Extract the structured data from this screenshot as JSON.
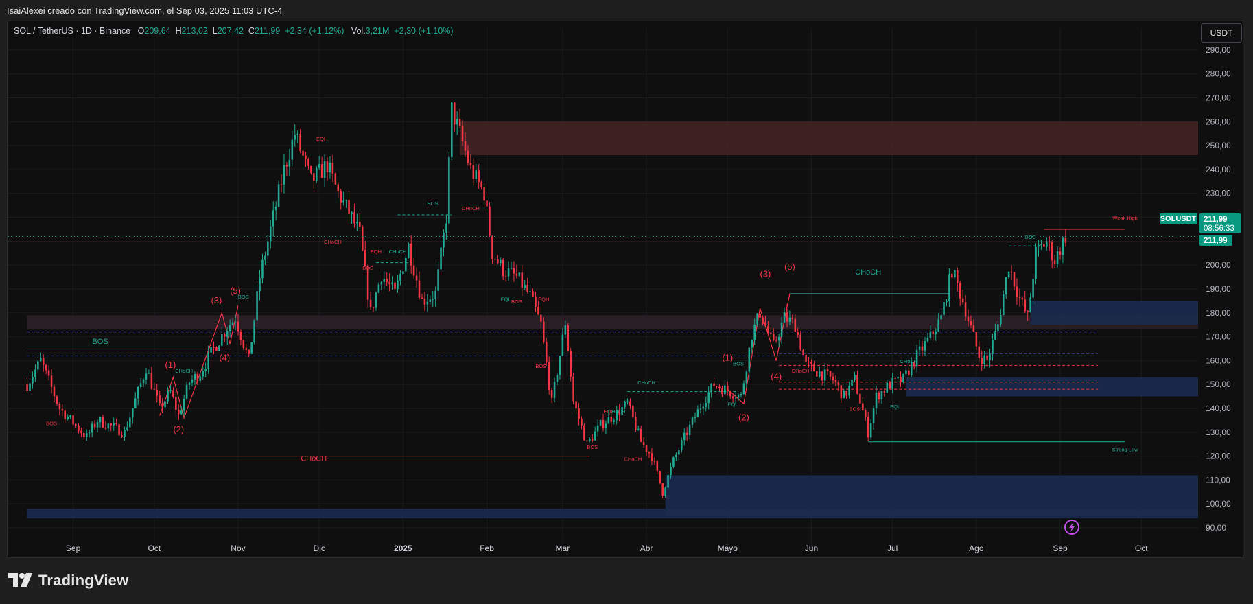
{
  "header": {
    "attribution": "IsaiAlexei creado con TradingView.com, el Sep 03, 2025 11:03 UTC-4"
  },
  "legend": {
    "symbol": "SOL / TetherUS · 1D · Binance",
    "o_label": "O",
    "o_value": "209,64",
    "h_label": "H",
    "h_value": "213,02",
    "l_label": "L",
    "l_value": "207,42",
    "c_label": "C",
    "c_value": "211,99",
    "change": "+2,34 (+1,12%)",
    "vol_label": "Vol.",
    "vol_value": "3,21M",
    "vol_change": "+2,30 (+1,10%)"
  },
  "currency_button": "USDT",
  "footer": {
    "brand": "TradingView"
  },
  "colors": {
    "up": "#22ab94",
    "down": "#f23645",
    "bg": "#0f0f0f",
    "supply_zone": "#4a2426",
    "demand_zone": "#1b2b4f",
    "label_bg": "#089981"
  },
  "chart_data": {
    "type": "candlestick",
    "title": "SOL / TetherUS · 1D · Binance",
    "x_ticks": [
      {
        "label": "Sep",
        "date": "2024-09-01"
      },
      {
        "label": "Oct",
        "date": "2024-10-01"
      },
      {
        "label": "Nov",
        "date": "2024-11-01"
      },
      {
        "label": "Dic",
        "date": "2024-12-01"
      },
      {
        "label": "2025",
        "date": "2025-01-01"
      },
      {
        "label": "Feb",
        "date": "2025-02-01"
      },
      {
        "label": "Mar",
        "date": "2025-03-01"
      },
      {
        "label": "Abr",
        "date": "2025-04-01"
      },
      {
        "label": "Mayo",
        "date": "2025-05-01"
      },
      {
        "label": "Jun",
        "date": "2025-06-01"
      },
      {
        "label": "Jul",
        "date": "2025-07-01"
      },
      {
        "label": "Ago",
        "date": "2025-08-01"
      },
      {
        "label": "Sep",
        "date": "2025-09-01"
      },
      {
        "label": "Oct",
        "date": "2025-10-01"
      }
    ],
    "y_ticks": [
      "290,00",
      "280,00",
      "270,00",
      "260,00",
      "250,00",
      "240,00",
      "230,00",
      "220,00",
      "210,00",
      "200,00",
      "190,00",
      "180,00",
      "170,00",
      "160,00",
      "150,00",
      "140,00",
      "130,00",
      "120,00",
      "110,00",
      "100,00",
      "90,00"
    ],
    "y_range": [
      88,
      296
    ],
    "price_path": [
      [
        "2024-08-15",
        150
      ],
      [
        "2024-08-20",
        160
      ],
      [
        "2024-08-27",
        140
      ],
      [
        "2024-09-06",
        128
      ],
      [
        "2024-09-10",
        135
      ],
      [
        "2024-09-20",
        130
      ],
      [
        "2024-09-28",
        157
      ],
      [
        "2024-10-03",
        140
      ],
      [
        "2024-10-07",
        147
      ],
      [
        "2024-10-10",
        137
      ],
      [
        "2024-10-14",
        151
      ],
      [
        "2024-10-18",
        155
      ],
      [
        "2024-10-23",
        165
      ],
      [
        "2024-10-28",
        174
      ],
      [
        "2024-10-31",
        178
      ],
      [
        "2024-11-05",
        160
      ],
      [
        "2024-11-09",
        195
      ],
      [
        "2024-11-13",
        215
      ],
      [
        "2024-11-18",
        240
      ],
      [
        "2024-11-22",
        255
      ],
      [
        "2024-11-28",
        235
      ],
      [
        "2024-12-04",
        242
      ],
      [
        "2024-12-08",
        230
      ],
      [
        "2024-12-12",
        222
      ],
      [
        "2024-12-16",
        213
      ],
      [
        "2024-12-20",
        180
      ],
      [
        "2024-12-24",
        196
      ],
      [
        "2024-12-29",
        188
      ],
      [
        "2025-01-03",
        208
      ],
      [
        "2025-01-08",
        185
      ],
      [
        "2025-01-13",
        188
      ],
      [
        "2025-01-17",
        220
      ],
      [
        "2025-01-19",
        265
      ],
      [
        "2025-01-22",
        255
      ],
      [
        "2025-01-26",
        240
      ],
      [
        "2025-01-31",
        230
      ],
      [
        "2025-02-03",
        205
      ],
      [
        "2025-02-07",
        198
      ],
      [
        "2025-02-12",
        195
      ],
      [
        "2025-02-17",
        187
      ],
      [
        "2025-02-21",
        175
      ],
      [
        "2025-02-25",
        142
      ],
      [
        "2025-03-02",
        176
      ],
      [
        "2025-03-05",
        143
      ],
      [
        "2025-03-10",
        125
      ],
      [
        "2025-03-15",
        133
      ],
      [
        "2025-03-20",
        137
      ],
      [
        "2025-03-25",
        142
      ],
      [
        "2025-03-30",
        126
      ],
      [
        "2025-04-03",
        120
      ],
      [
        "2025-04-07",
        105
      ],
      [
        "2025-04-11",
        118
      ],
      [
        "2025-04-16",
        130
      ],
      [
        "2025-04-22",
        143
      ],
      [
        "2025-04-26",
        150
      ],
      [
        "2025-05-02",
        147
      ],
      [
        "2025-05-06",
        145
      ],
      [
        "2025-05-10",
        171
      ],
      [
        "2025-05-13",
        180
      ],
      [
        "2025-05-18",
        166
      ],
      [
        "2025-05-22",
        178
      ],
      [
        "2025-05-26",
        175
      ],
      [
        "2025-05-30",
        158
      ],
      [
        "2025-06-04",
        155
      ],
      [
        "2025-06-09",
        152
      ],
      [
        "2025-06-13",
        145
      ],
      [
        "2025-06-17",
        152
      ],
      [
        "2025-06-22",
        130
      ],
      [
        "2025-06-25",
        145
      ],
      [
        "2025-06-30",
        150
      ],
      [
        "2025-07-05",
        152
      ],
      [
        "2025-07-10",
        162
      ],
      [
        "2025-07-15",
        170
      ],
      [
        "2025-07-19",
        178
      ],
      [
        "2025-07-23",
        198
      ],
      [
        "2025-07-27",
        185
      ],
      [
        "2025-08-02",
        162
      ],
      [
        "2025-08-05",
        160
      ],
      [
        "2025-08-09",
        175
      ],
      [
        "2025-08-13",
        200
      ],
      [
        "2025-08-17",
        186
      ],
      [
        "2025-08-20",
        178
      ],
      [
        "2025-08-23",
        205
      ],
      [
        "2025-08-27",
        210
      ],
      [
        "2025-08-30",
        202
      ],
      [
        "2025-09-03",
        212
      ]
    ],
    "zones": [
      {
        "kind": "supply",
        "from": "2025-01-22",
        "low": 246,
        "high": 260
      },
      {
        "kind": "mixed",
        "from": "2024-08-15",
        "low": 173,
        "high": 179
      },
      {
        "kind": "demand",
        "from": "2025-08-21",
        "low": 175,
        "high": 185
      },
      {
        "kind": "demand",
        "from": "2025-07-06",
        "low": 145,
        "high": 153
      },
      {
        "kind": "demand",
        "from": "2025-04-08",
        "low": 95,
        "high": 112
      },
      {
        "kind": "demand",
        "from": "2024-08-15",
        "low": 94,
        "high": 98
      }
    ],
    "annotations": [
      {
        "text": "BOS",
        "date": "2024-09-11",
        "price": 167,
        "color": "up",
        "size": "medium"
      },
      {
        "text": "BOS",
        "date": "2024-08-24",
        "price": 133,
        "color": "down"
      },
      {
        "text": "CHoCH",
        "date": "2024-11-29",
        "price": 118,
        "color": "down",
        "size": "medium"
      },
      {
        "text": "(1)",
        "date": "2024-10-07",
        "price": 157,
        "color": "down",
        "size": "large"
      },
      {
        "text": "(2)",
        "date": "2024-10-10",
        "price": 130,
        "color": "down",
        "size": "large"
      },
      {
        "text": "(3)",
        "date": "2024-10-24",
        "price": 184,
        "color": "down",
        "size": "large"
      },
      {
        "text": "(4)",
        "date": "2024-10-27",
        "price": 160,
        "color": "down",
        "size": "large"
      },
      {
        "text": "(5)",
        "date": "2024-10-31",
        "price": 188,
        "color": "down",
        "size": "large"
      },
      {
        "text": "BOS",
        "date": "2024-11-03",
        "price": 186,
        "color": "up"
      },
      {
        "text": "CHoCH",
        "date": "2024-10-12",
        "price": 155,
        "color": "up"
      },
      {
        "text": "EQH",
        "date": "2024-12-02",
        "price": 252,
        "color": "down"
      },
      {
        "text": "CHoCH",
        "date": "2024-12-06",
        "price": 209,
        "color": "down"
      },
      {
        "text": "EQH",
        "date": "2024-12-22",
        "price": 205,
        "color": "down"
      },
      {
        "text": "CHoCH",
        "date": "2024-12-30",
        "price": 205,
        "color": "up"
      },
      {
        "text": "BOS",
        "date": "2024-12-19",
        "price": 198,
        "color": "down"
      },
      {
        "text": "BOS",
        "date": "2025-01-12",
        "price": 225,
        "color": "up"
      },
      {
        "text": "CHoCH",
        "date": "2025-01-26",
        "price": 223,
        "color": "down"
      },
      {
        "text": "EQL",
        "date": "2025-02-08",
        "price": 185,
        "color": "up"
      },
      {
        "text": "BOS",
        "date": "2025-02-12",
        "price": 184,
        "color": "down"
      },
      {
        "text": "EQH",
        "date": "2025-02-22",
        "price": 185,
        "color": "down"
      },
      {
        "text": "BOS",
        "date": "2025-02-21",
        "price": 157,
        "color": "down"
      },
      {
        "text": "CHoCH",
        "date": "2025-04-01",
        "price": 150,
        "color": "up"
      },
      {
        "text": "EQL",
        "date": "2025-03-18",
        "price": 138,
        "color": "down"
      },
      {
        "text": "CHoCH",
        "date": "2025-03-21",
        "price": 138,
        "color": "up"
      },
      {
        "text": "BOS",
        "date": "2025-03-12",
        "price": 123,
        "color": "down"
      },
      {
        "text": "CHoCH",
        "date": "2025-03-27",
        "price": 118,
        "color": "down"
      },
      {
        "text": "(1)",
        "date": "2025-05-01",
        "price": 160,
        "color": "down",
        "size": "large"
      },
      {
        "text": "BOS",
        "date": "2025-05-05",
        "price": 158,
        "color": "up"
      },
      {
        "text": "(2)",
        "date": "2025-05-07",
        "price": 135,
        "color": "down",
        "size": "large"
      },
      {
        "text": "EQL",
        "date": "2025-05-03",
        "price": 141,
        "color": "up"
      },
      {
        "text": "(3)",
        "date": "2025-05-15",
        "price": 195,
        "color": "down",
        "size": "large"
      },
      {
        "text": "(5)",
        "date": "2025-05-24",
        "price": 198,
        "color": "down",
        "size": "large"
      },
      {
        "text": "CHoCH",
        "date": "2025-06-22",
        "price": 196,
        "color": "up",
        "size": "medium"
      },
      {
        "text": "(4)",
        "date": "2025-05-19",
        "price": 152,
        "color": "down",
        "size": "large"
      },
      {
        "text": "CHoCH",
        "date": "2025-05-28",
        "price": 155,
        "color": "down"
      },
      {
        "text": "BOS",
        "date": "2025-06-17",
        "price": 139,
        "color": "down"
      },
      {
        "text": "EQL",
        "date": "2025-07-02",
        "price": 140,
        "color": "up"
      },
      {
        "text": "CHoCH",
        "date": "2025-07-07",
        "price": 159,
        "color": "up"
      },
      {
        "text": "BOS",
        "date": "2025-08-21",
        "price": 211,
        "color": "up"
      },
      {
        "text": "Weak High",
        "date": "2025-09-25",
        "price": 219,
        "color": "down"
      },
      {
        "text": "Strong Low",
        "date": "2025-09-25",
        "price": 122,
        "color": "up"
      }
    ],
    "last_price": {
      "symbol": "SOLUSDT",
      "price": "211,99",
      "countdown": "08:56:33",
      "value": 211.99
    }
  }
}
